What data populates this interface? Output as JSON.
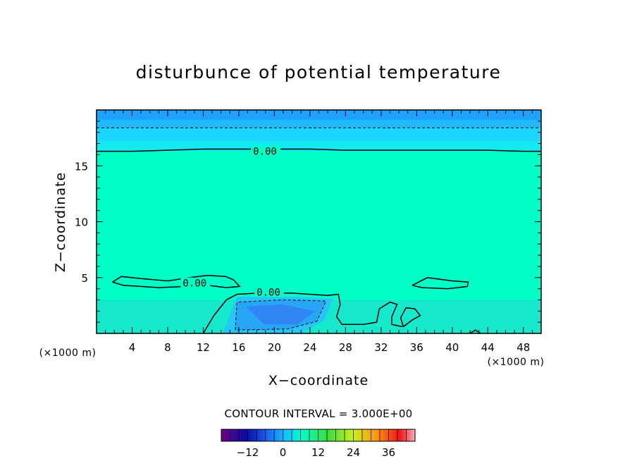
{
  "chart_data": {
    "type": "heatmap",
    "title": "disturbunce of potential temperature",
    "xlabel": "X−coordinate",
    "ylabel": "Z−coordinate",
    "x_unit": "(×1000 m)",
    "z_unit": "(×1000 m)",
    "xlim": [
      0,
      50
    ],
    "ylim": [
      0,
      20
    ],
    "x_ticks": [
      4,
      8,
      12,
      16,
      20,
      24,
      28,
      32,
      36,
      40,
      44,
      48
    ],
    "x_tick_labels": [
      "4",
      "8",
      "12",
      "16",
      "20",
      "24",
      "28",
      "32",
      "36",
      "40",
      "44",
      "48"
    ],
    "y_ticks": [
      5,
      10,
      15
    ],
    "y_tick_labels": [
      "5",
      "10",
      "15"
    ],
    "contour_interval_text": "CONTOUR INTERVAL = 3.000E+00",
    "contour_labels": [
      {
        "text": "0.00",
        "x": 17.6,
        "z": 16.3
      },
      {
        "text": "0.00",
        "x": 9.7,
        "z": 4.5
      },
      {
        "text": "0.00",
        "x": 18.0,
        "z": 3.7
      }
    ],
    "colorbar": {
      "ticks": [
        -12,
        0,
        12,
        24,
        36
      ],
      "tick_labels": [
        "−12",
        "0",
        "12",
        "24",
        "36"
      ],
      "min": -21,
      "max": 45,
      "step": 3
    },
    "background_color": "#00ffc6",
    "regions": [
      {
        "name": "upper-layer-1",
        "color": "#1fa2ff",
        "x0": 0,
        "x1": 50,
        "z0": 19.1,
        "z1": 20
      },
      {
        "name": "upper-layer-2",
        "color": "#22baff",
        "x0": 0,
        "x1": 50,
        "z0": 18.4,
        "z1": 19.1
      },
      {
        "name": "upper-layer-3",
        "color": "#1cd6ff",
        "x0": 0,
        "x1": 50,
        "z0": 17.2,
        "z1": 18.4
      },
      {
        "name": "upper-layer-4",
        "color": "#13eaf2",
        "x0": 0,
        "x1": 50,
        "z0": 16.3,
        "z1": 17.2
      },
      {
        "name": "low-layer",
        "color": "#16e8cc",
        "x0": 0,
        "x1": 50,
        "z0": 0,
        "z1": 3.0
      }
    ],
    "cold_pool": {
      "outer": [
        [
          14.2,
          0
        ],
        [
          15.8,
          3.3
        ],
        [
          22,
          3.3
        ],
        [
          26.6,
          3.1
        ],
        [
          25.6,
          1.2
        ],
        [
          23,
          0
        ]
      ],
      "middle": [
        [
          15.6,
          0.3
        ],
        [
          15.8,
          2.8
        ],
        [
          21,
          3.0
        ],
        [
          25.8,
          2.9
        ],
        [
          24.8,
          1.1
        ],
        [
          21.5,
          0.4
        ]
      ],
      "core": [
        [
          16.8,
          2.4
        ],
        [
          20.8,
          2.6
        ],
        [
          24.6,
          2.0
        ],
        [
          22.6,
          0.8
        ],
        [
          18.8,
          0.8
        ]
      ],
      "colors": [
        "#26c6f6",
        "#28a6f6",
        "#2f86f4"
      ]
    },
    "zero_contours": [
      [
        [
          0,
          16.3
        ],
        [
          4,
          16.3
        ],
        [
          8,
          16.4
        ],
        [
          12,
          16.5
        ],
        [
          16,
          16.5
        ],
        [
          20,
          16.5
        ],
        [
          24,
          16.5
        ],
        [
          28,
          16.4
        ],
        [
          32,
          16.4
        ],
        [
          36,
          16.4
        ],
        [
          40,
          16.4
        ],
        [
          44,
          16.4
        ],
        [
          48,
          16.3
        ],
        [
          50,
          16.3
        ]
      ],
      [
        [
          12.0,
          0
        ],
        [
          13.2,
          1.6
        ],
        [
          14.6,
          3.0
        ],
        [
          15.8,
          3.5
        ],
        [
          18,
          3.6
        ],
        [
          22,
          3.6
        ],
        [
          26,
          3.4
        ],
        [
          27.2,
          3.5
        ],
        [
          27.4,
          2.6
        ],
        [
          27.0,
          1.5
        ],
        [
          27.6,
          0.8
        ],
        [
          30,
          0.8
        ],
        [
          31.5,
          1.0
        ],
        [
          31.8,
          2.2
        ],
        [
          33,
          2.8
        ],
        [
          33.8,
          2.6
        ],
        [
          33.2,
          1.5
        ],
        [
          33.2,
          0.8
        ],
        [
          34.4,
          0.6
        ]
      ],
      [
        [
          1.8,
          4.6
        ],
        [
          2.8,
          5.1
        ],
        [
          5,
          4.9
        ],
        [
          8,
          4.7
        ],
        [
          10.5,
          5.0
        ],
        [
          12.5,
          5.2
        ],
        [
          14.5,
          5.1
        ],
        [
          15.4,
          4.8
        ],
        [
          16.1,
          4.2
        ],
        [
          14.6,
          4.1
        ],
        [
          12.5,
          4.3
        ],
        [
          10,
          4.2
        ],
        [
          7,
          4.1
        ],
        [
          3,
          4.3
        ],
        [
          1.8,
          4.6
        ]
      ],
      [
        [
          35.5,
          4.3
        ],
        [
          37.2,
          5.0
        ],
        [
          40,
          4.7
        ],
        [
          41.8,
          4.6
        ],
        [
          41.7,
          4.2
        ],
        [
          39.5,
          4.0
        ],
        [
          36.6,
          4.1
        ],
        [
          35.5,
          4.3
        ]
      ],
      [
        [
          34.5,
          0.6
        ],
        [
          35.5,
          1.2
        ],
        [
          36.4,
          1.6
        ],
        [
          35.8,
          2.2
        ],
        [
          34.8,
          2.3
        ],
        [
          34.2,
          1.4
        ],
        [
          34.5,
          0.6
        ]
      ],
      [
        [
          42.0,
          0
        ],
        [
          42.6,
          0.3
        ],
        [
          43.2,
          0
        ]
      ]
    ],
    "dashed_contours": [
      [
        [
          0,
          18.4
        ],
        [
          10,
          18.4
        ],
        [
          20,
          18.4
        ],
        [
          30,
          18.4
        ],
        [
          40,
          18.4
        ],
        [
          50,
          18.4
        ]
      ],
      [
        [
          15.6,
          0.3
        ],
        [
          15.8,
          2.8
        ],
        [
          21,
          3.0
        ],
        [
          25.8,
          2.9
        ],
        [
          24.8,
          1.1
        ],
        [
          21.5,
          0.4
        ],
        [
          15.6,
          0.3
        ]
      ]
    ]
  }
}
